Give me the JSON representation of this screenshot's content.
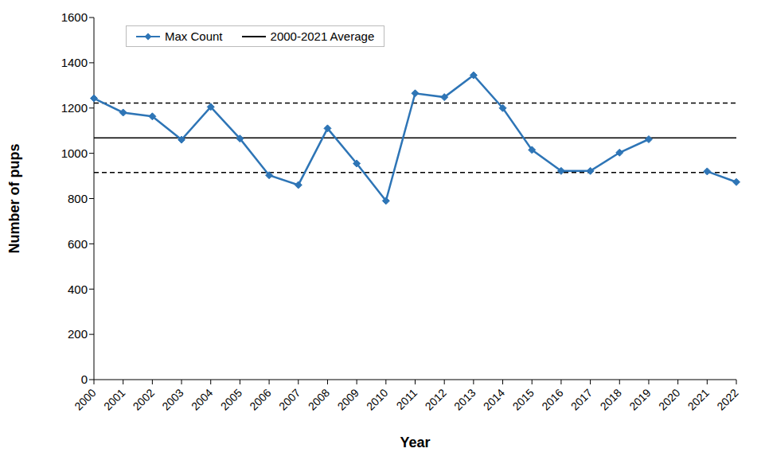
{
  "chart_data": {
    "type": "line",
    "x_label": "Year",
    "y_label": "Number of pups",
    "categories": [
      "2000",
      "2001",
      "2002",
      "2003",
      "2004",
      "2005",
      "2006",
      "2007",
      "2008",
      "2009",
      "2010",
      "2011",
      "2012",
      "2013",
      "2014",
      "2015",
      "2016",
      "2017",
      "2018",
      "2019",
      "2020",
      "2021",
      "2022"
    ],
    "series": [
      {
        "name": "Max Count",
        "color": "#2e75b6",
        "marker": "diamond",
        "line_style": "solid",
        "values": [
          1243,
          1180,
          1163,
          1060,
          1205,
          1065,
          903,
          860,
          1110,
          955,
          790,
          1265,
          1248,
          1345,
          1200,
          1015,
          922,
          922,
          1003,
          1062,
          null,
          920,
          873
        ]
      }
    ],
    "reference_lines": [
      {
        "name": "2000-2021 Average",
        "value": 1068,
        "color": "#000000",
        "line_style": "solid"
      },
      {
        "value": 1222,
        "color": "#000000",
        "line_style": "dashed"
      },
      {
        "value": 915,
        "color": "#000000",
        "line_style": "dashed"
      }
    ],
    "ylim": [
      0,
      1600
    ],
    "yticks": [
      0,
      200,
      400,
      600,
      800,
      1000,
      1200,
      1400,
      1600
    ],
    "grid": false,
    "legend": "upper left"
  }
}
